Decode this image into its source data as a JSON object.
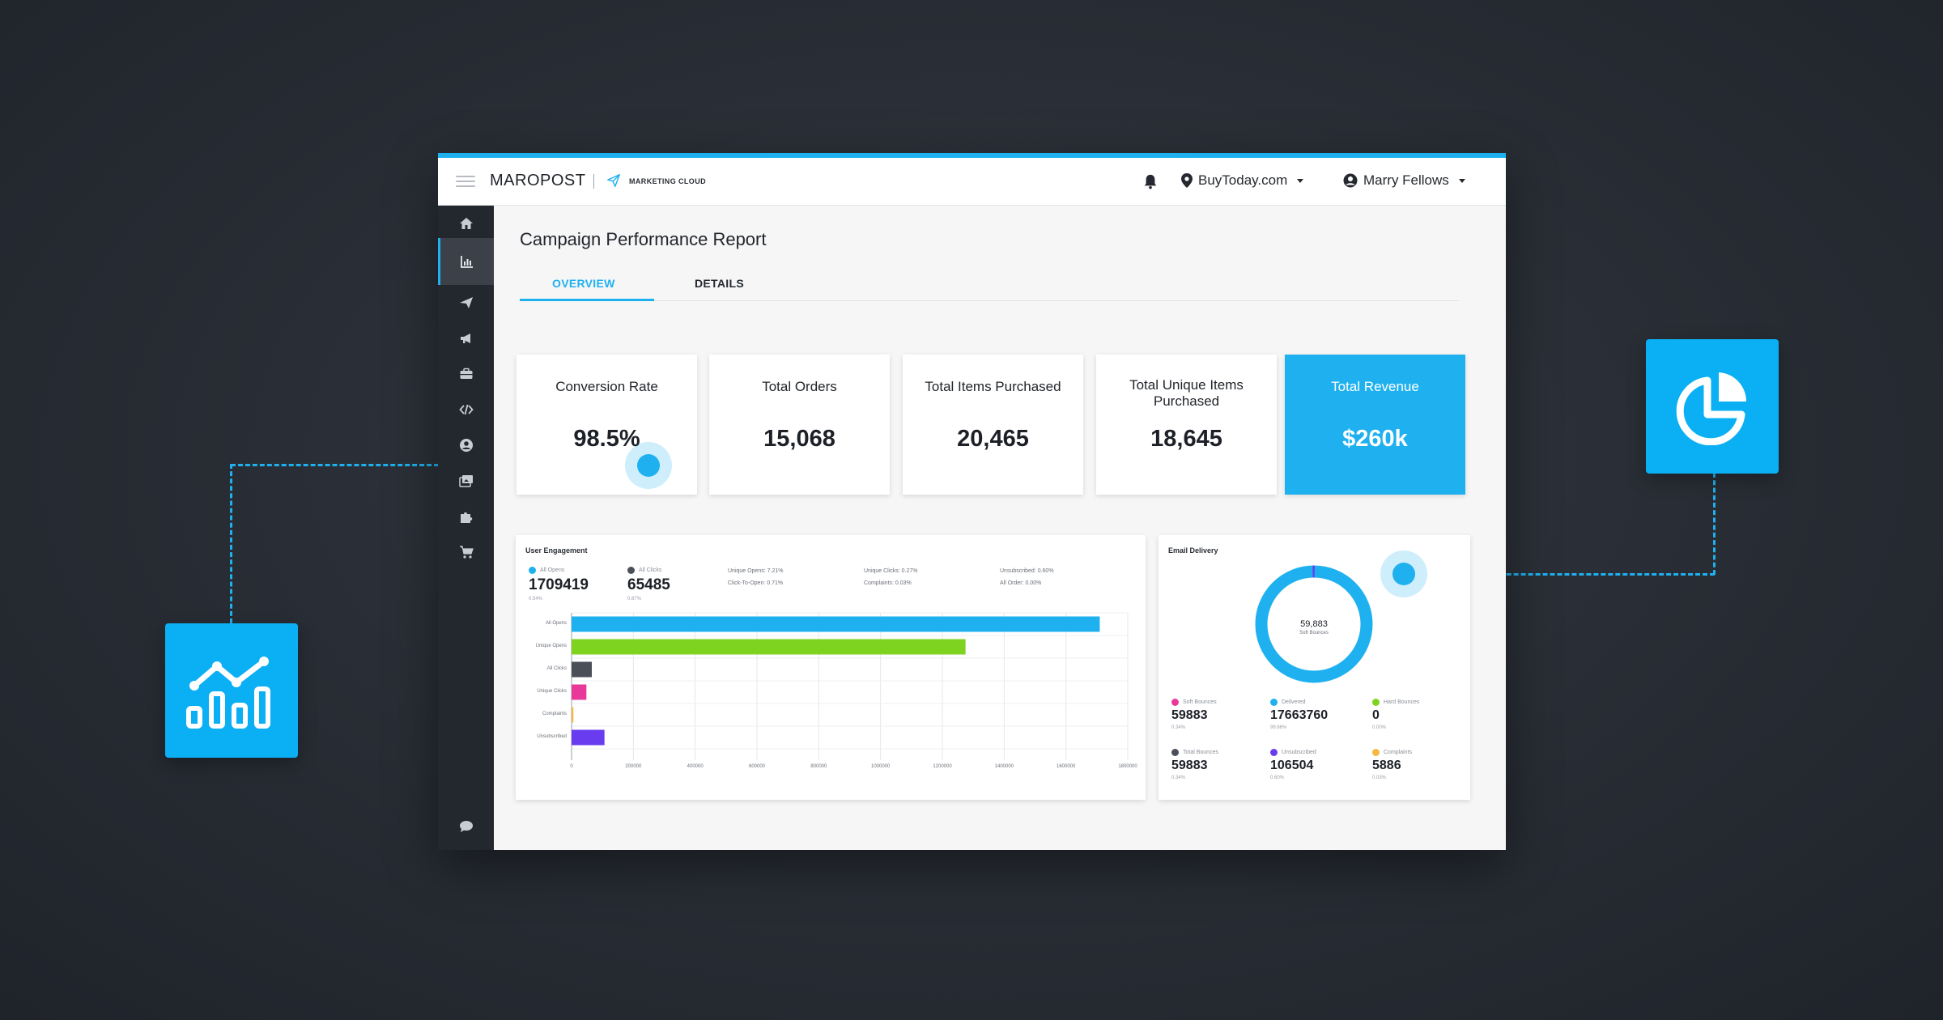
{
  "header": {
    "brand": "MAROPOST",
    "product": "MARKETING CLOUD",
    "account": "BuyToday.com",
    "user": "Marry Fellows"
  },
  "sidebar": {
    "items": [
      "home-icon",
      "chart-icon",
      "send-icon",
      "megaphone-icon",
      "briefcase-icon",
      "code-icon",
      "user-circle-icon",
      "images-icon",
      "puzzle-icon",
      "cart-icon",
      "chat-icon"
    ]
  },
  "page": {
    "title": "Campaign Performance Report",
    "tabs": [
      {
        "label": "OVERVIEW"
      },
      {
        "label": "DETAILS"
      }
    ],
    "active_tab": "OVERVIEW"
  },
  "kpis": [
    {
      "label": "Conversion Rate",
      "value": "98.5%"
    },
    {
      "label": "Total Orders",
      "value": "15,068"
    },
    {
      "label": "Total Items Purchased",
      "value": "20,465"
    },
    {
      "label": "Total Unique Items Purchased",
      "value": "18,645"
    },
    {
      "label": "Total Revenue",
      "value": "$260k"
    }
  ],
  "engagement": {
    "title": "User Engagement",
    "stats": [
      {
        "label": "All Opens",
        "value": "1709419",
        "sub": "0.54%",
        "color": "#1fb1ef"
      },
      {
        "label": "All Clicks",
        "value": "65485",
        "sub": "0.87%",
        "color": "#4a4f58"
      }
    ],
    "mini": [
      [
        "Unique Opens: 7.21%",
        "Click-To-Open: 0.71%"
      ],
      [
        "Unique Clicks: 0.27%",
        "Complaints: 0.03%"
      ],
      [
        "Unsubscribed: 0.60%",
        "All Order: 0.00%"
      ]
    ]
  },
  "delivery": {
    "title": "Email Delivery",
    "donut_value": "59,883",
    "donut_label": "Soft Bounces",
    "stats": [
      {
        "label": "Soft Bounces",
        "value": "59883",
        "sub": "0.34%",
        "color": "#e8399a"
      },
      {
        "label": "Delivered",
        "value": "17663760",
        "sub": "99.66%",
        "color": "#1fb1ef"
      },
      {
        "label": "Hard Bounces",
        "value": "0",
        "sub": "0.00%",
        "color": "#7ed321"
      },
      {
        "label": "Total Bounces",
        "value": "59883",
        "sub": "0.34%",
        "color": "#4a4f58"
      },
      {
        "label": "Unsubscribed",
        "value": "106504",
        "sub": "0.60%",
        "color": "#6a3cf0"
      },
      {
        "label": "Complaints",
        "value": "5886",
        "sub": "0.03%",
        "color": "#f5b942"
      }
    ]
  },
  "chart_data": {
    "type": "bar",
    "orientation": "horizontal",
    "title": "User Engagement",
    "categories": [
      "All Opens",
      "Unique Opens",
      "All Clicks",
      "Unique Clicks",
      "Complaints",
      "Unsubscribed"
    ],
    "values": [
      1709419,
      1275000,
      65485,
      48000,
      5886,
      106504
    ],
    "colors": [
      "#1fb1ef",
      "#7ed321",
      "#4a4f58",
      "#e8399a",
      "#f5b942",
      "#6a3cf0"
    ],
    "xlim": [
      0,
      1800000
    ],
    "xticks": [
      "0",
      "200000",
      "400000",
      "600000",
      "800000",
      "1000000",
      "1200000",
      "1400000",
      "1600000",
      "1800000"
    ],
    "grid": true
  }
}
